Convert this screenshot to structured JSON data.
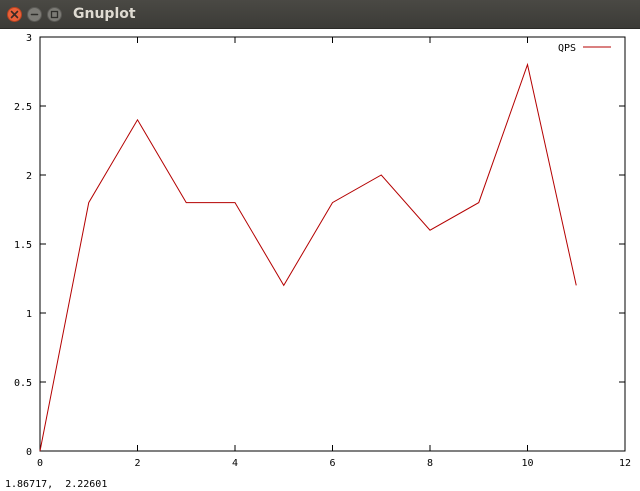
{
  "window": {
    "title": "Gnuplot",
    "status_text": "1.86717,  2.22601"
  },
  "colors": {
    "series": "#b40000",
    "axis": "#000000"
  },
  "chart_data": {
    "type": "line",
    "title": "",
    "xlabel": "",
    "ylabel": "",
    "xlim": [
      0,
      12
    ],
    "ylim": [
      0,
      3
    ],
    "xticks": [
      0,
      2,
      4,
      6,
      8,
      10,
      12
    ],
    "xtick_labels": [
      "0",
      "2",
      "4",
      "6",
      "8",
      "10",
      "12"
    ],
    "yticks": [
      0,
      0.5,
      1,
      1.5,
      2,
      2.5,
      3
    ],
    "ytick_labels": [
      "0",
      "0.5",
      "1",
      "1.5",
      "2",
      "2.5",
      "3"
    ],
    "grid": false,
    "legend": "top-right",
    "series": [
      {
        "name": "QPS",
        "x": [
          0,
          1,
          2,
          3,
          4,
          5,
          6,
          7,
          8,
          9,
          10,
          11
        ],
        "y": [
          0,
          1.8,
          2.4,
          1.8,
          1.8,
          1.2,
          1.8,
          2.0,
          1.6,
          1.8,
          2.8,
          1.2
        ]
      }
    ]
  }
}
